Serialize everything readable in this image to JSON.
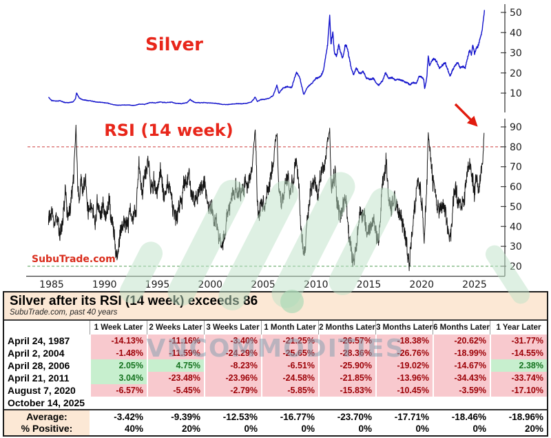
{
  "chart": {
    "silver_label": "Silver",
    "rsi_label": "RSI (14 week)",
    "site_label": "SubuTrade.com",
    "watermark_text": "VNCOMMODITIES",
    "accent_red": "#e8261a",
    "line_blue": "#1414cc",
    "line_black": "#141414",
    "overbought_color": "#cc3b3b",
    "oversold_color": "#4d9b51",
    "axis_color": "#3a3a3a",
    "x_ticks": [
      1985,
      1990,
      1995,
      2000,
      2005,
      2010,
      2015,
      2020,
      2025
    ],
    "silver_y_ticks": [
      10,
      20,
      30,
      40,
      50
    ],
    "rsi_y_ticks": [
      20,
      30,
      40,
      50,
      60,
      70,
      80,
      90
    ],
    "overbought_level": 80,
    "oversold_level": 20
  },
  "chart_data": [
    {
      "type": "line",
      "name": "Silver weekly price (USD/oz)",
      "x_label": "year",
      "x_range": [
        1984.7,
        2025.94
      ],
      "y_range": [
        0,
        52
      ],
      "legend_position": "none",
      "grid": false,
      "points": [
        [
          1984.7,
          8.0
        ],
        [
          1985.0,
          6.3
        ],
        [
          1985.4,
          6.1
        ],
        [
          1985.8,
          6.2
        ],
        [
          1986.2,
          5.4
        ],
        [
          1986.6,
          5.3
        ],
        [
          1987.0,
          5.6
        ],
        [
          1987.25,
          7.2
        ],
        [
          1987.35,
          10.2
        ],
        [
          1987.6,
          7.6
        ],
        [
          1987.9,
          6.8
        ],
        [
          1988.3,
          6.5
        ],
        [
          1988.8,
          6.1
        ],
        [
          1989.3,
          5.6
        ],
        [
          1989.8,
          5.4
        ],
        [
          1990.3,
          5.1
        ],
        [
          1990.8,
          4.3
        ],
        [
          1991.3,
          4.0
        ],
        [
          1991.8,
          4.1
        ],
        [
          1992.3,
          4.1
        ],
        [
          1992.8,
          3.9
        ],
        [
          1993.3,
          4.5
        ],
        [
          1993.8,
          4.4
        ],
        [
          1994.3,
          5.3
        ],
        [
          1994.8,
          5.2
        ],
        [
          1995.3,
          5.6
        ],
        [
          1995.8,
          5.3
        ],
        [
          1996.3,
          5.5
        ],
        [
          1996.8,
          4.9
        ],
        [
          1997.3,
          4.8
        ],
        [
          1997.8,
          5.3
        ],
        [
          1998.1,
          6.8
        ],
        [
          1998.5,
          5.4
        ],
        [
          1999.0,
          5.2
        ],
        [
          1999.5,
          5.3
        ],
        [
          2000.0,
          5.1
        ],
        [
          2000.5,
          5.0
        ],
        [
          2001.0,
          4.5
        ],
        [
          2001.5,
          4.3
        ],
        [
          2002.0,
          4.5
        ],
        [
          2002.5,
          4.8
        ],
        [
          2003.0,
          4.7
        ],
        [
          2003.5,
          5.0
        ],
        [
          2003.9,
          5.6
        ],
        [
          2004.25,
          8.1
        ],
        [
          2004.45,
          5.9
        ],
        [
          2004.8,
          6.8
        ],
        [
          2005.2,
          7.0
        ],
        [
          2005.6,
          7.4
        ],
        [
          2005.95,
          8.8
        ],
        [
          2006.3,
          13.9
        ],
        [
          2006.5,
          9.9
        ],
        [
          2006.9,
          12.7
        ],
        [
          2007.3,
          13.2
        ],
        [
          2007.7,
          12.8
        ],
        [
          2008.15,
          20.2
        ],
        [
          2008.5,
          17.0
        ],
        [
          2008.85,
          9.2
        ],
        [
          2009.2,
          13.0
        ],
        [
          2009.6,
          14.8
        ],
        [
          2010.0,
          17.2
        ],
        [
          2010.4,
          18.0
        ],
        [
          2010.7,
          21.0
        ],
        [
          2010.95,
          29.0
        ],
        [
          2011.1,
          34.0
        ],
        [
          2011.3,
          48.5
        ],
        [
          2011.42,
          34.5
        ],
        [
          2011.6,
          40.0
        ],
        [
          2011.75,
          30.0
        ],
        [
          2011.95,
          28.5
        ],
        [
          2012.15,
          34.0
        ],
        [
          2012.5,
          27.2
        ],
        [
          2012.8,
          34.5
        ],
        [
          2013.0,
          31.5
        ],
        [
          2013.3,
          23.2
        ],
        [
          2013.55,
          19.0
        ],
        [
          2013.8,
          22.5
        ],
        [
          2014.1,
          19.8
        ],
        [
          2014.45,
          20.8
        ],
        [
          2014.8,
          17.2
        ],
        [
          2015.1,
          16.8
        ],
        [
          2015.4,
          17.3
        ],
        [
          2015.7,
          14.8
        ],
        [
          2015.95,
          13.9
        ],
        [
          2016.3,
          16.2
        ],
        [
          2016.6,
          20.3
        ],
        [
          2016.9,
          17.0
        ],
        [
          2017.2,
          17.8
        ],
        [
          2017.5,
          16.3
        ],
        [
          2017.8,
          17.0
        ],
        [
          2018.1,
          16.5
        ],
        [
          2018.5,
          15.4
        ],
        [
          2018.9,
          14.2
        ],
        [
          2019.2,
          15.2
        ],
        [
          2019.5,
          14.9
        ],
        [
          2019.75,
          18.3
        ],
        [
          2020.0,
          17.9
        ],
        [
          2020.2,
          16.5
        ],
        [
          2020.28,
          12.0
        ],
        [
          2020.5,
          18.5
        ],
        [
          2020.62,
          28.8
        ],
        [
          2020.75,
          23.8
        ],
        [
          2020.95,
          25.8
        ],
        [
          2021.15,
          27.2
        ],
        [
          2021.4,
          25.8
        ],
        [
          2021.7,
          22.4
        ],
        [
          2021.95,
          23.3
        ],
        [
          2022.2,
          25.2
        ],
        [
          2022.5,
          20.9
        ],
        [
          2022.7,
          18.3
        ],
        [
          2022.95,
          21.8
        ],
        [
          2023.15,
          23.5
        ],
        [
          2023.4,
          25.0
        ],
        [
          2023.65,
          22.4
        ],
        [
          2023.9,
          23.2
        ],
        [
          2024.1,
          22.4
        ],
        [
          2024.35,
          27.5
        ],
        [
          2024.55,
          31.3
        ],
        [
          2024.7,
          28.8
        ],
        [
          2024.85,
          33.5
        ],
        [
          2025.0,
          29.3
        ],
        [
          2025.15,
          32.2
        ],
        [
          2025.3,
          33.6
        ],
        [
          2025.45,
          36.0
        ],
        [
          2025.6,
          38.5
        ],
        [
          2025.72,
          41.5
        ],
        [
          2025.82,
          46.0
        ],
        [
          2025.9,
          49.0
        ],
        [
          2025.94,
          51.2
        ]
      ]
    },
    {
      "type": "line",
      "name": "RSI (14 week)",
      "x_label": "year",
      "x_range": [
        1984.7,
        2025.92
      ],
      "y_range": [
        15,
        95
      ],
      "reference_lines": [
        80,
        20
      ],
      "grid": false,
      "points": [
        [
          1984.7,
          44
        ],
        [
          1985.0,
          50
        ],
        [
          1985.25,
          42
        ],
        [
          1985.5,
          48
        ],
        [
          1985.75,
          38
        ],
        [
          1986.0,
          42
        ],
        [
          1986.3,
          55
        ],
        [
          1986.55,
          44
        ],
        [
          1986.8,
          52
        ],
        [
          1987.05,
          62
        ],
        [
          1987.3,
          91
        ],
        [
          1987.45,
          60
        ],
        [
          1987.6,
          52
        ],
        [
          1987.8,
          63
        ],
        [
          1988.0,
          55
        ],
        [
          1988.25,
          60
        ],
        [
          1988.5,
          47
        ],
        [
          1988.75,
          54
        ],
        [
          1989.0,
          42
        ],
        [
          1989.3,
          50
        ],
        [
          1989.6,
          44
        ],
        [
          1989.9,
          52
        ],
        [
          1990.2,
          45
        ],
        [
          1990.5,
          50
        ],
        [
          1990.8,
          38
        ],
        [
          1991.0,
          28
        ],
        [
          1991.2,
          24
        ],
        [
          1991.5,
          38
        ],
        [
          1991.8,
          44
        ],
        [
          1992.1,
          40
        ],
        [
          1992.4,
          46
        ],
        [
          1992.7,
          38
        ],
        [
          1993.0,
          50
        ],
        [
          1993.3,
          72
        ],
        [
          1993.55,
          58
        ],
        [
          1993.8,
          66
        ],
        [
          1994.1,
          70
        ],
        [
          1994.4,
          56
        ],
        [
          1994.7,
          62
        ],
        [
          1995.0,
          58
        ],
        [
          1995.3,
          67
        ],
        [
          1995.6,
          52
        ],
        [
          1995.9,
          58
        ],
        [
          1996.2,
          62
        ],
        [
          1996.5,
          48
        ],
        [
          1996.8,
          44
        ],
        [
          1997.1,
          50
        ],
        [
          1997.4,
          58
        ],
        [
          1997.7,
          64
        ],
        [
          1998.0,
          70
        ],
        [
          1998.2,
          58
        ],
        [
          1998.5,
          50
        ],
        [
          1998.8,
          55
        ],
        [
          1999.1,
          60
        ],
        [
          1999.4,
          64
        ],
        [
          1999.7,
          52
        ],
        [
          2000.0,
          48
        ],
        [
          2000.3,
          44
        ],
        [
          2000.6,
          40
        ],
        [
          2000.9,
          36
        ],
        [
          2001.2,
          30
        ],
        [
          2001.5,
          42
        ],
        [
          2001.8,
          46
        ],
        [
          2002.1,
          54
        ],
        [
          2002.4,
          60
        ],
        [
          2002.7,
          56
        ],
        [
          2003.0,
          58
        ],
        [
          2003.3,
          64
        ],
        [
          2003.6,
          60
        ],
        [
          2003.9,
          70
        ],
        [
          2004.26,
          89
        ],
        [
          2004.45,
          52
        ],
        [
          2004.65,
          44
        ],
        [
          2004.9,
          56
        ],
        [
          2005.15,
          52
        ],
        [
          2005.4,
          58
        ],
        [
          2005.7,
          64
        ],
        [
          2005.95,
          72
        ],
        [
          2006.32,
          86.5
        ],
        [
          2006.5,
          56
        ],
        [
          2006.75,
          50
        ],
        [
          2007.0,
          58
        ],
        [
          2007.3,
          63
        ],
        [
          2007.6,
          58
        ],
        [
          2007.9,
          66
        ],
        [
          2008.1,
          71
        ],
        [
          2008.4,
          58
        ],
        [
          2008.7,
          32
        ],
        [
          2008.9,
          26
        ],
        [
          2009.2,
          44
        ],
        [
          2009.5,
          58
        ],
        [
          2009.8,
          64
        ],
        [
          2010.1,
          58
        ],
        [
          2010.4,
          64
        ],
        [
          2010.7,
          70
        ],
        [
          2010.95,
          76
        ],
        [
          2011.3,
          89
        ],
        [
          2011.45,
          56
        ],
        [
          2011.6,
          62
        ],
        [
          2011.8,
          66
        ],
        [
          2012.0,
          52
        ],
        [
          2012.3,
          46
        ],
        [
          2012.6,
          52
        ],
        [
          2012.9,
          48
        ],
        [
          2013.2,
          32
        ],
        [
          2013.45,
          24
        ],
        [
          2013.6,
          21
        ],
        [
          2013.9,
          38
        ],
        [
          2014.2,
          44
        ],
        [
          2014.5,
          48
        ],
        [
          2014.8,
          38
        ],
        [
          2015.1,
          42
        ],
        [
          2015.4,
          46
        ],
        [
          2015.7,
          34
        ],
        [
          2015.95,
          30
        ],
        [
          2016.2,
          52
        ],
        [
          2016.45,
          66
        ],
        [
          2016.65,
          74
        ],
        [
          2016.9,
          52
        ],
        [
          2017.15,
          48
        ],
        [
          2017.4,
          56
        ],
        [
          2017.65,
          50
        ],
        [
          2017.9,
          46
        ],
        [
          2018.2,
          40
        ],
        [
          2018.5,
          34
        ],
        [
          2018.8,
          22
        ],
        [
          2019.1,
          40
        ],
        [
          2019.4,
          52
        ],
        [
          2019.65,
          66
        ],
        [
          2019.9,
          58
        ],
        [
          2020.1,
          46
        ],
        [
          2020.25,
          32
        ],
        [
          2020.45,
          58
        ],
        [
          2020.62,
          86.5
        ],
        [
          2020.8,
          74
        ],
        [
          2021.0,
          66
        ],
        [
          2021.2,
          60
        ],
        [
          2021.45,
          54
        ],
        [
          2021.7,
          48
        ],
        [
          2021.95,
          52
        ],
        [
          2022.2,
          46
        ],
        [
          2022.45,
          40
        ],
        [
          2022.7,
          32
        ],
        [
          2022.9,
          44
        ],
        [
          2023.15,
          58
        ],
        [
          2023.4,
          52
        ],
        [
          2023.6,
          48
        ],
        [
          2023.85,
          50
        ],
        [
          2024.1,
          56
        ],
        [
          2024.35,
          66
        ],
        [
          2024.55,
          72
        ],
        [
          2024.75,
          64
        ],
        [
          2024.95,
          56
        ],
        [
          2025.15,
          62
        ],
        [
          2025.35,
          58
        ],
        [
          2025.55,
          64
        ],
        [
          2025.7,
          70
        ],
        [
          2025.8,
          76
        ],
        [
          2025.9,
          87
        ]
      ]
    }
  ],
  "table": {
    "title": "Silver after its RSI (14 week) exceeds 86",
    "subtitle": "SubuTrade.com, past 40 years",
    "columns": [
      "1 Week Later",
      "2 Weeks Later",
      "3 Weeks Later",
      "1 Month Later",
      "2 Months Later",
      "3 Months Later",
      "6 Months Later",
      "1 Year Later"
    ],
    "rows": [
      {
        "date": "April 24, 1987",
        "values": [
          "-14.13%",
          "-11.16%",
          "-3.40%",
          "-21.25%",
          "-26.57%",
          "-18.38%",
          "-20.62%",
          "-31.77%"
        ]
      },
      {
        "date": "April 2, 2004",
        "values": [
          "-1.48%",
          "-11.59%",
          "-24.29%",
          "-25.65%",
          "-28.36%",
          "-26.76%",
          "-18.99%",
          "-14.55%"
        ]
      },
      {
        "date": "April 28, 2006",
        "values": [
          "2.05%",
          "4.75%",
          "-8.23%",
          "-6.51%",
          "-25.90%",
          "-19.02%",
          "-14.67%",
          "2.38%"
        ]
      },
      {
        "date": "April 21, 2011",
        "values": [
          "3.04%",
          "-23.48%",
          "-23.96%",
          "-24.58%",
          "-21.85%",
          "-13.96%",
          "-34.43%",
          "-33.74%"
        ]
      },
      {
        "date": "August 7, 2020",
        "values": [
          "-6.57%",
          "-5.45%",
          "-2.79%",
          "-5.85%",
          "-15.83%",
          "-10.45%",
          "-3.59%",
          "-17.10%"
        ]
      },
      {
        "date": "October 14, 2025",
        "values": [
          "",
          "",
          "",
          "",
          "",
          "",
          "",
          ""
        ]
      }
    ],
    "average": {
      "label": "Average:",
      "values": [
        "-3.42%",
        "-9.39%",
        "-12.53%",
        "-16.77%",
        "-23.70%",
        "-17.71%",
        "-18.46%",
        "-18.96%"
      ]
    },
    "percent_positive": {
      "label": "% Positive:",
      "values": [
        "40%",
        "20%",
        "0%",
        "0%",
        "0%",
        "0%",
        "0%",
        "20%"
      ]
    },
    "colors": {
      "bad_bg": "#f8c9ce",
      "bad_text": "#9c0006",
      "good_bg": "#c7efce",
      "good_text": "#15731f",
      "band_bg": "#fce8d5"
    }
  }
}
